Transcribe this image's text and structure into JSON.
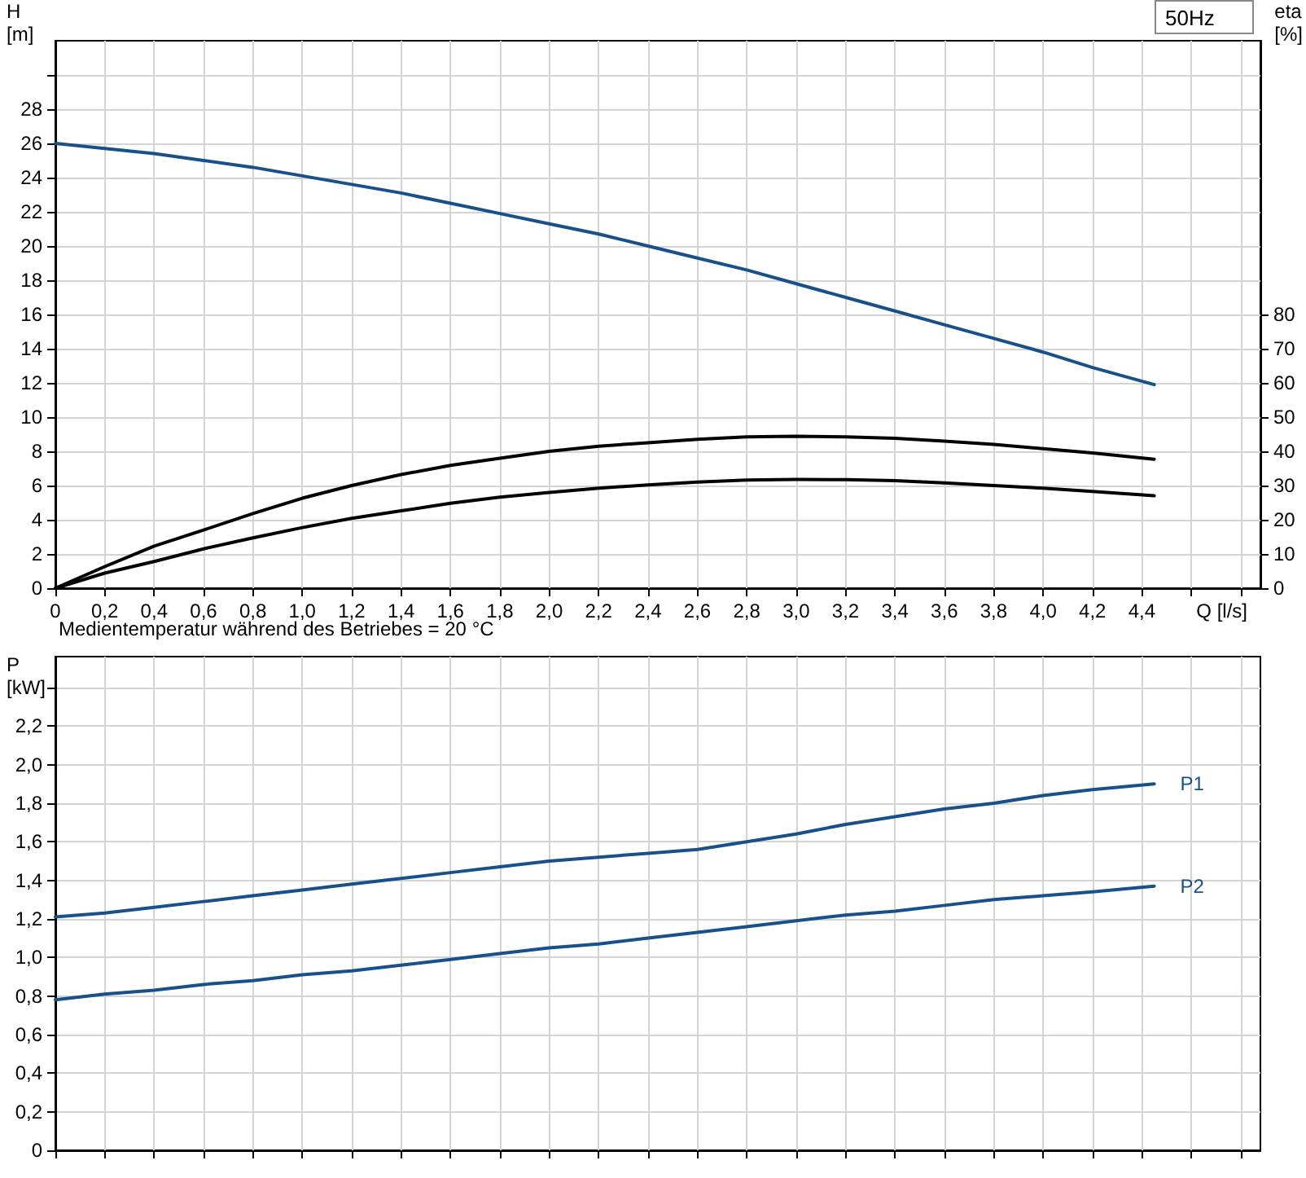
{
  "chart_data": [
    {
      "type": "line",
      "title": "50Hz",
      "ylabel": "H [m]",
      "y2label": "eta [%]",
      "xlabel": "Q [l/s]",
      "annotations": [
        "Medientemperatur während des Betriebes = 20 °C"
      ],
      "x": [
        0,
        0.2,
        0.4,
        0.6,
        0.8,
        1.0,
        1.2,
        1.4,
        1.6,
        1.8,
        2.0,
        2.2,
        2.4,
        2.6,
        2.8,
        3.0,
        3.2,
        3.4,
        3.6,
        3.8,
        4.0,
        4.2,
        4.45
      ],
      "series": [
        {
          "color": "#17508a",
          "values": [
            26.0,
            25.7,
            25.4,
            25.0,
            24.6,
            24.1,
            23.6,
            23.1,
            22.5,
            21.9,
            21.3,
            20.7,
            20.0,
            19.3,
            18.6,
            17.8,
            17.0,
            16.2,
            15.4,
            14.6,
            13.8,
            12.9,
            11.9
          ]
        },
        {
          "color": "#000000",
          "axis": "y2",
          "values": [
            0,
            6.3,
            12.3,
            17,
            21.8,
            26.3,
            30,
            33.2,
            35.9,
            38,
            40,
            41.5,
            42.5,
            43.5,
            44.2,
            44.4,
            44.2,
            43.8,
            43,
            42,
            40.8,
            39.5,
            37.7
          ]
        },
        {
          "color": "#000000",
          "axis": "y2",
          "values": [
            0,
            4.4,
            7.8,
            11.5,
            14.7,
            17.7,
            20.4,
            22.6,
            24.8,
            26.6,
            28,
            29.2,
            30.2,
            31,
            31.6,
            31.8,
            31.7,
            31.4,
            30.8,
            30,
            29.2,
            28.3,
            27
          ]
        }
      ],
      "xlim": [
        0,
        4.88
      ],
      "xticks": [
        0,
        {
          "value": 0.2,
          "label": "0,2"
        },
        {
          "value": 0.4,
          "label": "0,4"
        },
        {
          "value": 0.6,
          "label": "0,6"
        },
        {
          "value": 0.8,
          "label": "0,8"
        },
        {
          "value": 1.0,
          "label": "1,0"
        },
        {
          "value": 1.2,
          "label": "1,2"
        },
        {
          "value": 1.4,
          "label": "1,4"
        },
        {
          "value": 1.6,
          "label": "1,6"
        },
        {
          "value": 1.8,
          "label": "1,8"
        },
        {
          "value": 2.0,
          "label": "2,0"
        },
        {
          "value": 2.2,
          "label": "2,2"
        },
        {
          "value": 2.4,
          "label": "2,4"
        },
        {
          "value": 2.6,
          "label": "2,6"
        },
        {
          "value": 2.8,
          "label": "2,8"
        },
        {
          "value": 3.0,
          "label": "3,0"
        },
        {
          "value": 3.2,
          "label": "3,2"
        },
        {
          "value": 3.4,
          "label": "3,4"
        },
        {
          "value": 3.6,
          "label": "3,6"
        },
        {
          "value": 3.8,
          "label": "3,8"
        },
        {
          "value": 4.0,
          "label": "4,0"
        },
        {
          "value": 4.2,
          "label": "4,2"
        },
        {
          "value": 4.4,
          "label": "4,4"
        },
        {
          "value": 4.6,
          "label": null
        },
        {
          "value": 4.8,
          "label": null
        }
      ],
      "ylim": [
        0,
        32
      ],
      "yticks": [
        0,
        2,
        4,
        6,
        8,
        10,
        12,
        14,
        16,
        18,
        20,
        22,
        24,
        26,
        28,
        {
          "value": 30,
          "label": null
        }
      ],
      "y2lim": [
        0,
        160
      ],
      "y2ticks": [
        0,
        10,
        20,
        30,
        40,
        50,
        60,
        70,
        80
      ],
      "grid": true,
      "marker": "none"
    },
    {
      "type": "line",
      "ylabel": "P [kW]",
      "tick_labels": "y",
      "x": [
        0,
        0.2,
        0.4,
        0.6,
        0.8,
        1.0,
        1.2,
        1.4,
        1.6,
        1.8,
        2.0,
        2.2,
        2.4,
        2.6,
        2.8,
        3.0,
        3.2,
        3.4,
        3.6,
        3.8,
        4.0,
        4.2,
        4.45
      ],
      "xlim": [
        0,
        4.88
      ],
      "xticks": [
        {
          "value": 0,
          "label": null
        },
        {
          "value": 0.2,
          "label": null
        },
        {
          "value": 0.4,
          "label": null
        },
        {
          "value": 0.6,
          "label": null
        },
        {
          "value": 0.8,
          "label": null
        },
        {
          "value": 1.0,
          "label": null
        },
        {
          "value": 1.2,
          "label": null
        },
        {
          "value": 1.4,
          "label": null
        },
        {
          "value": 1.6,
          "label": null
        },
        {
          "value": 1.8,
          "label": null
        },
        {
          "value": 2.0,
          "label": null
        },
        {
          "value": 2.2,
          "label": null
        },
        {
          "value": 2.4,
          "label": null
        },
        {
          "value": 2.6,
          "label": null
        },
        {
          "value": 2.8,
          "label": null
        },
        {
          "value": 3.0,
          "label": null
        },
        {
          "value": 3.2,
          "label": null
        },
        {
          "value": 3.4,
          "label": null
        },
        {
          "value": 3.6,
          "label": null
        },
        {
          "value": 3.8,
          "label": null
        },
        {
          "value": 4.0,
          "label": null
        },
        {
          "value": 4.2,
          "label": null
        },
        {
          "value": 4.4,
          "label": null
        },
        {
          "value": 4.6,
          "label": null
        },
        {
          "value": 4.8,
          "label": null
        }
      ],
      "series": [
        {
          "name": "P1",
          "color": "#17508a",
          "values": [
            1.21,
            1.23,
            1.26,
            1.29,
            1.32,
            1.35,
            1.38,
            1.41,
            1.44,
            1.47,
            1.5,
            1.52,
            1.54,
            1.56,
            1.6,
            1.64,
            1.69,
            1.73,
            1.77,
            1.8,
            1.84,
            1.87,
            1.9
          ]
        },
        {
          "name": "P2",
          "color": "#17508a",
          "values": [
            0.78,
            0.81,
            0.83,
            0.86,
            0.88,
            0.91,
            0.93,
            0.96,
            0.99,
            1.02,
            1.05,
            1.07,
            1.1,
            1.13,
            1.16,
            1.19,
            1.22,
            1.24,
            1.27,
            1.3,
            1.32,
            1.34,
            1.37
          ]
        }
      ],
      "ylim": [
        0,
        2.56
      ],
      "yticks": [
        0,
        {
          "value": 0.2,
          "label": "0,2"
        },
        {
          "value": 0.4,
          "label": "0,4"
        },
        {
          "value": 0.6,
          "label": "0,6"
        },
        {
          "value": 0.8,
          "label": "0,8"
        },
        {
          "value": 1.0,
          "label": "1,0"
        },
        {
          "value": 1.2,
          "label": "1,2"
        },
        {
          "value": 1.4,
          "label": "1,4"
        },
        {
          "value": 1.6,
          "label": "1,6"
        },
        {
          "value": 1.8,
          "label": "1,8"
        },
        {
          "value": 2.0,
          "label": "2,0"
        },
        {
          "value": 2.2,
          "label": "2,2"
        },
        {
          "value": 2.4,
          "label": null
        }
      ],
      "grid": true,
      "marker": "none"
    }
  ]
}
